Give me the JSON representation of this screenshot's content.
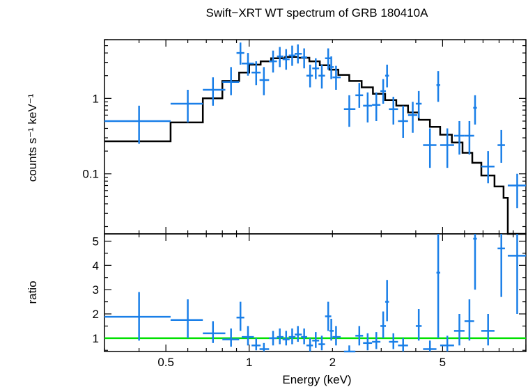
{
  "chart_data": [
    {
      "type": "scatter",
      "title": "Swift−XRT WT spectrum of GRB 180410A",
      "xlabel": "Energy (keV)",
      "ylabel": "counts s⁻¹ keV⁻¹",
      "xscale": "log",
      "yscale": "log",
      "xlim": [
        0.3,
        10
      ],
      "ylim": [
        0.016,
        6
      ],
      "ytick_labels": [
        {
          "v": 1,
          "t": "1"
        },
        {
          "v": 0.1,
          "t": "0.1"
        }
      ],
      "data_color": "#1a7fe8",
      "model_color": "#000000",
      "data": [
        {
          "x": 0.4,
          "xlo": 0.3,
          "xhi": 0.52,
          "y": 0.5,
          "ylo": 0.25,
          "yhi": 0.8
        },
        {
          "x": 0.6,
          "xlo": 0.52,
          "xhi": 0.68,
          "y": 0.85,
          "ylo": 0.48,
          "yhi": 1.3
        },
        {
          "x": 0.74,
          "xlo": 0.68,
          "xhi": 0.82,
          "y": 1.3,
          "ylo": 0.8,
          "yhi": 1.9
        },
        {
          "x": 0.86,
          "xlo": 0.8,
          "xhi": 0.92,
          "y": 1.65,
          "ylo": 1.1,
          "yhi": 2.6
        },
        {
          "x": 0.93,
          "xlo": 0.9,
          "xhi": 0.96,
          "y": 4.0,
          "ylo": 2.8,
          "yhi": 5.5
        },
        {
          "x": 0.99,
          "xlo": 0.94,
          "xhi": 1.04,
          "y": 2.9,
          "ylo": 2.0,
          "yhi": 4.0
        },
        {
          "x": 1.06,
          "xlo": 1.02,
          "xhi": 1.1,
          "y": 2.2,
          "ylo": 1.5,
          "yhi": 3.1
        },
        {
          "x": 1.13,
          "xlo": 1.09,
          "xhi": 1.18,
          "y": 1.75,
          "ylo": 1.1,
          "yhi": 2.6
        },
        {
          "x": 1.22,
          "xlo": 1.18,
          "xhi": 1.26,
          "y": 3.1,
          "ylo": 2.2,
          "yhi": 4.3
        },
        {
          "x": 1.29,
          "xlo": 1.26,
          "xhi": 1.33,
          "y": 3.6,
          "ylo": 2.6,
          "yhi": 4.8
        },
        {
          "x": 1.36,
          "xlo": 1.32,
          "xhi": 1.4,
          "y": 3.3,
          "ylo": 2.4,
          "yhi": 4.5
        },
        {
          "x": 1.43,
          "xlo": 1.39,
          "xhi": 1.47,
          "y": 3.7,
          "ylo": 2.7,
          "yhi": 5.0
        },
        {
          "x": 1.5,
          "xlo": 1.46,
          "xhi": 1.55,
          "y": 3.9,
          "ylo": 2.9,
          "yhi": 5.2
        },
        {
          "x": 1.58,
          "xlo": 1.54,
          "xhi": 1.62,
          "y": 3.5,
          "ylo": 2.5,
          "yhi": 4.6
        },
        {
          "x": 1.66,
          "xlo": 1.61,
          "xhi": 1.7,
          "y": 2.0,
          "ylo": 1.4,
          "yhi": 2.8
        },
        {
          "x": 1.74,
          "xlo": 1.69,
          "xhi": 1.79,
          "y": 2.5,
          "ylo": 1.8,
          "yhi": 3.4
        },
        {
          "x": 1.83,
          "xlo": 1.78,
          "xhi": 1.88,
          "y": 2.0,
          "ylo": 1.35,
          "yhi": 2.8
        },
        {
          "x": 1.93,
          "xlo": 1.88,
          "xhi": 1.98,
          "y": 3.4,
          "ylo": 2.4,
          "yhi": 4.6
        },
        {
          "x": 1.98,
          "xlo": 1.95,
          "xhi": 2.02,
          "y": 2.6,
          "ylo": 1.8,
          "yhi": 3.6
        },
        {
          "x": 2.06,
          "xlo": 2.0,
          "xhi": 2.14,
          "y": 1.9,
          "ylo": 1.3,
          "yhi": 2.7
        },
        {
          "x": 2.3,
          "xlo": 2.2,
          "xhi": 2.42,
          "y": 0.72,
          "ylo": 0.42,
          "yhi": 1.1
        },
        {
          "x": 2.5,
          "xlo": 2.42,
          "xhi": 2.58,
          "y": 1.1,
          "ylo": 0.75,
          "yhi": 1.6
        },
        {
          "x": 2.68,
          "xlo": 2.58,
          "xhi": 2.78,
          "y": 0.8,
          "ylo": 0.48,
          "yhi": 1.2
        },
        {
          "x": 2.88,
          "xlo": 2.78,
          "xhi": 2.98,
          "y": 0.82,
          "ylo": 0.5,
          "yhi": 1.2
        },
        {
          "x": 3.05,
          "xlo": 2.98,
          "xhi": 3.12,
          "y": 1.25,
          "ylo": 0.85,
          "yhi": 1.8
        },
        {
          "x": 3.15,
          "xlo": 3.1,
          "xhi": 3.2,
          "y": 2.0,
          "ylo": 1.4,
          "yhi": 2.8
        },
        {
          "x": 3.32,
          "xlo": 3.2,
          "xhi": 3.45,
          "y": 0.72,
          "ylo": 0.45,
          "yhi": 1.05
        },
        {
          "x": 3.6,
          "xlo": 3.45,
          "xhi": 3.75,
          "y": 0.5,
          "ylo": 0.3,
          "yhi": 0.8
        },
        {
          "x": 3.9,
          "xlo": 3.75,
          "xhi": 4.05,
          "y": 0.6,
          "ylo": 0.35,
          "yhi": 0.9
        },
        {
          "x": 4.1,
          "xlo": 4.0,
          "xhi": 4.2,
          "y": 0.85,
          "ylo": 0.55,
          "yhi": 1.25
        },
        {
          "x": 4.5,
          "xlo": 4.25,
          "xhi": 4.75,
          "y": 0.24,
          "ylo": 0.12,
          "yhi": 0.4
        },
        {
          "x": 4.82,
          "xlo": 4.75,
          "xhi": 4.9,
          "y": 1.5,
          "ylo": 0.9,
          "yhi": 2.3
        },
        {
          "x": 5.2,
          "xlo": 4.9,
          "xhi": 5.5,
          "y": 0.24,
          "ylo": 0.12,
          "yhi": 0.4
        },
        {
          "x": 5.75,
          "xlo": 5.5,
          "xhi": 6.0,
          "y": 0.32,
          "ylo": 0.18,
          "yhi": 0.5
        },
        {
          "x": 6.25,
          "xlo": 6.0,
          "xhi": 6.5,
          "y": 0.32,
          "ylo": 0.18,
          "yhi": 0.5
        },
        {
          "x": 6.55,
          "xlo": 6.45,
          "xhi": 6.65,
          "y": 0.75,
          "ylo": 0.45,
          "yhi": 1.1
        },
        {
          "x": 7.3,
          "xlo": 6.9,
          "xhi": 7.7,
          "y": 0.125,
          "ylo": 0.075,
          "yhi": 0.2
        },
        {
          "x": 8.15,
          "xlo": 7.9,
          "xhi": 8.4,
          "y": 0.24,
          "ylo": 0.14,
          "yhi": 0.38
        },
        {
          "x": 9.3,
          "xlo": 8.6,
          "xhi": 10.0,
          "y": 0.07,
          "ylo": 0.035,
          "yhi": 0.1
        }
      ],
      "model_step": [
        [
          0.3,
          0.27
        ],
        [
          0.52,
          0.48
        ],
        [
          0.68,
          1.0
        ],
        [
          0.8,
          1.7
        ],
        [
          0.92,
          2.2
        ],
        [
          1.0,
          2.8
        ],
        [
          1.1,
          3.1
        ],
        [
          1.2,
          3.4
        ],
        [
          1.35,
          3.55
        ],
        [
          1.5,
          3.45
        ],
        [
          1.65,
          3.1
        ],
        [
          1.8,
          2.75
        ],
        [
          1.95,
          2.4
        ],
        [
          2.1,
          2.05
        ],
        [
          2.3,
          1.7
        ],
        [
          2.55,
          1.4
        ],
        [
          2.8,
          1.15
        ],
        [
          3.1,
          0.95
        ],
        [
          3.4,
          0.8
        ],
        [
          3.75,
          0.65
        ],
        [
          4.1,
          0.52
        ],
        [
          4.5,
          0.42
        ],
        [
          4.9,
          0.33
        ],
        [
          5.4,
          0.26
        ],
        [
          5.9,
          0.19
        ],
        [
          6.4,
          0.14
        ],
        [
          6.9,
          0.095
        ],
        [
          7.7,
          0.068
        ],
        [
          8.3,
          0.048
        ],
        [
          8.6,
          0.012
        ],
        [
          10.0,
          0.012
        ]
      ]
    },
    {
      "type": "scatter",
      "xlabel": "Energy (keV)",
      "ylabel": "ratio",
      "xscale": "log",
      "xlim": [
        0.3,
        10
      ],
      "ylim": [
        0.45,
        5.3
      ],
      "ytick_labels": [
        {
          "v": 1,
          "t": "1"
        },
        {
          "v": 2,
          "t": "2"
        },
        {
          "v": 3,
          "t": "3"
        },
        {
          "v": 4,
          "t": "4"
        },
        {
          "v": 5,
          "t": "5"
        }
      ],
      "xtick_labels": [
        {
          "v": 0.5,
          "t": "0.5"
        },
        {
          "v": 1,
          "t": "1"
        },
        {
          "v": 2,
          "t": "2"
        },
        {
          "v": 5,
          "t": "5"
        }
      ],
      "reference_line": {
        "y": 1,
        "color": "#00e000"
      },
      "data_color": "#1a7fe8",
      "data": [
        {
          "x": 0.4,
          "xlo": 0.3,
          "xhi": 0.52,
          "y": 1.88,
          "ylo": 0.9,
          "yhi": 2.9
        },
        {
          "x": 0.6,
          "xlo": 0.52,
          "xhi": 0.68,
          "y": 1.75,
          "ylo": 1.0,
          "yhi": 2.6
        },
        {
          "x": 0.74,
          "xlo": 0.68,
          "xhi": 0.82,
          "y": 1.2,
          "ylo": 0.8,
          "yhi": 1.7
        },
        {
          "x": 0.86,
          "xlo": 0.8,
          "xhi": 0.92,
          "y": 0.95,
          "ylo": 0.65,
          "yhi": 1.4
        },
        {
          "x": 0.93,
          "xlo": 0.9,
          "xhi": 0.96,
          "y": 1.85,
          "ylo": 1.3,
          "yhi": 2.5
        },
        {
          "x": 0.99,
          "xlo": 0.94,
          "xhi": 1.04,
          "y": 1.05,
          "ylo": 0.7,
          "yhi": 1.5
        },
        {
          "x": 1.06,
          "xlo": 1.02,
          "xhi": 1.1,
          "y": 0.7,
          "ylo": 0.5,
          "yhi": 1.0
        },
        {
          "x": 1.13,
          "xlo": 1.09,
          "xhi": 1.18,
          "y": 0.55,
          "ylo": 0.4,
          "yhi": 0.8
        },
        {
          "x": 1.22,
          "xlo": 1.18,
          "xhi": 1.26,
          "y": 1.0,
          "ylo": 0.7,
          "yhi": 1.3
        },
        {
          "x": 1.29,
          "xlo": 1.26,
          "xhi": 1.33,
          "y": 1.05,
          "ylo": 0.75,
          "yhi": 1.4
        },
        {
          "x": 1.36,
          "xlo": 1.32,
          "xhi": 1.4,
          "y": 0.95,
          "ylo": 0.7,
          "yhi": 1.3
        },
        {
          "x": 1.43,
          "xlo": 1.39,
          "xhi": 1.47,
          "y": 1.05,
          "ylo": 0.75,
          "yhi": 1.4
        },
        {
          "x": 1.5,
          "xlo": 1.46,
          "xhi": 1.55,
          "y": 1.15,
          "ylo": 0.85,
          "yhi": 1.5
        },
        {
          "x": 1.58,
          "xlo": 1.54,
          "xhi": 1.62,
          "y": 1.05,
          "ylo": 0.75,
          "yhi": 1.4
        },
        {
          "x": 1.66,
          "xlo": 1.61,
          "xhi": 1.7,
          "y": 0.7,
          "ylo": 0.45,
          "yhi": 1.0
        },
        {
          "x": 1.74,
          "xlo": 1.69,
          "xhi": 1.79,
          "y": 0.9,
          "ylo": 0.6,
          "yhi": 1.25
        },
        {
          "x": 1.83,
          "xlo": 1.78,
          "xhi": 1.88,
          "y": 0.75,
          "ylo": 0.5,
          "yhi": 1.1
        },
        {
          "x": 1.93,
          "xlo": 1.88,
          "xhi": 1.98,
          "y": 1.9,
          "ylo": 1.3,
          "yhi": 2.5
        },
        {
          "x": 1.98,
          "xlo": 1.95,
          "xhi": 2.02,
          "y": 1.3,
          "ylo": 0.9,
          "yhi": 1.8
        },
        {
          "x": 2.06,
          "xlo": 2.0,
          "xhi": 2.14,
          "y": 1.05,
          "ylo": 0.7,
          "yhi": 1.5
        },
        {
          "x": 2.3,
          "xlo": 2.2,
          "xhi": 2.42,
          "y": 0.45,
          "ylo": 0.3,
          "yhi": 0.7
        },
        {
          "x": 2.5,
          "xlo": 2.42,
          "xhi": 2.58,
          "y": 1.1,
          "ylo": 0.7,
          "yhi": 1.5
        },
        {
          "x": 2.68,
          "xlo": 2.58,
          "xhi": 2.78,
          "y": 0.8,
          "ylo": 0.5,
          "yhi": 1.2
        },
        {
          "x": 2.88,
          "xlo": 2.78,
          "xhi": 2.98,
          "y": 0.85,
          "ylo": 0.55,
          "yhi": 1.25
        },
        {
          "x": 3.05,
          "xlo": 2.98,
          "xhi": 3.12,
          "y": 1.5,
          "ylo": 1.0,
          "yhi": 2.1
        },
        {
          "x": 3.15,
          "xlo": 3.1,
          "xhi": 3.2,
          "y": 2.5,
          "ylo": 1.7,
          "yhi": 3.4
        },
        {
          "x": 3.32,
          "xlo": 3.2,
          "xhi": 3.45,
          "y": 0.85,
          "ylo": 0.55,
          "yhi": 1.2
        },
        {
          "x": 3.6,
          "xlo": 3.45,
          "xhi": 3.75,
          "y": 0.7,
          "ylo": 0.45,
          "yhi": 1.0
        },
        {
          "x": 4.1,
          "xlo": 4.0,
          "xhi": 4.2,
          "y": 1.5,
          "ylo": 0.9,
          "yhi": 2.2
        },
        {
          "x": 4.5,
          "xlo": 4.25,
          "xhi": 4.75,
          "y": 0.55,
          "ylo": 0.3,
          "yhi": 0.9
        },
        {
          "x": 4.82,
          "xlo": 4.75,
          "xhi": 4.9,
          "y": 3.7,
          "ylo": 1.0,
          "yhi": 5.3
        },
        {
          "x": 5.2,
          "xlo": 4.9,
          "xhi": 5.5,
          "y": 0.7,
          "ylo": 0.4,
          "yhi": 1.1
        },
        {
          "x": 5.75,
          "xlo": 5.5,
          "xhi": 6.0,
          "y": 1.3,
          "ylo": 0.7,
          "yhi": 2.0
        },
        {
          "x": 6.25,
          "xlo": 6.0,
          "xhi": 6.5,
          "y": 1.7,
          "ylo": 0.9,
          "yhi": 2.6
        },
        {
          "x": 6.55,
          "xlo": 6.45,
          "xhi": 6.65,
          "y": 5.1,
          "ylo": 3.0,
          "yhi": 5.3
        },
        {
          "x": 7.3,
          "xlo": 6.9,
          "xhi": 7.7,
          "y": 1.3,
          "ylo": 0.7,
          "yhi": 2.0
        },
        {
          "x": 8.15,
          "xlo": 7.9,
          "xhi": 8.4,
          "y": 4.7,
          "ylo": 2.7,
          "yhi": 5.3
        },
        {
          "x": 9.3,
          "xlo": 8.6,
          "xhi": 10.0,
          "y": 4.4,
          "ylo": 2.0,
          "yhi": 5.3
        }
      ]
    }
  ]
}
